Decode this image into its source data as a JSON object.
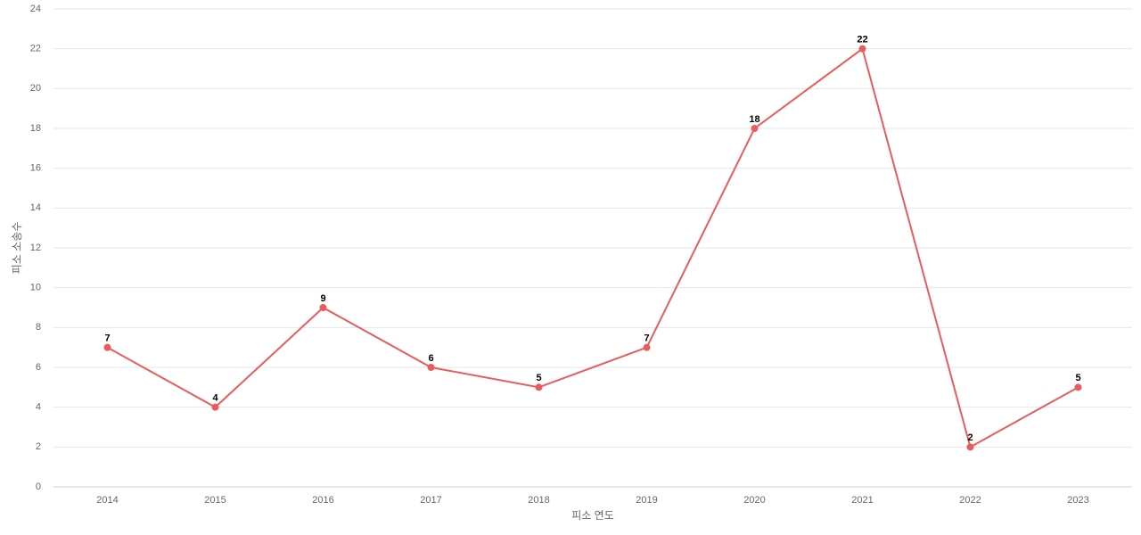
{
  "chart_data": {
    "type": "line",
    "x_label": "피소 연도",
    "y_label": "피소 소송수",
    "categories": [
      "2014",
      "2015",
      "2016",
      "2017",
      "2018",
      "2019",
      "2020",
      "2021",
      "2022",
      "2023"
    ],
    "series": [
      {
        "color": "#e85c5c",
        "values": [
          7,
          4,
          9,
          6,
          5,
          7,
          18,
          22,
          2,
          5
        ]
      }
    ],
    "ylim": [
      0,
      24
    ],
    "yticks": [
      0,
      2,
      4,
      6,
      8,
      10,
      12,
      14,
      16,
      18,
      20,
      22,
      24
    ],
    "grid": true
  }
}
